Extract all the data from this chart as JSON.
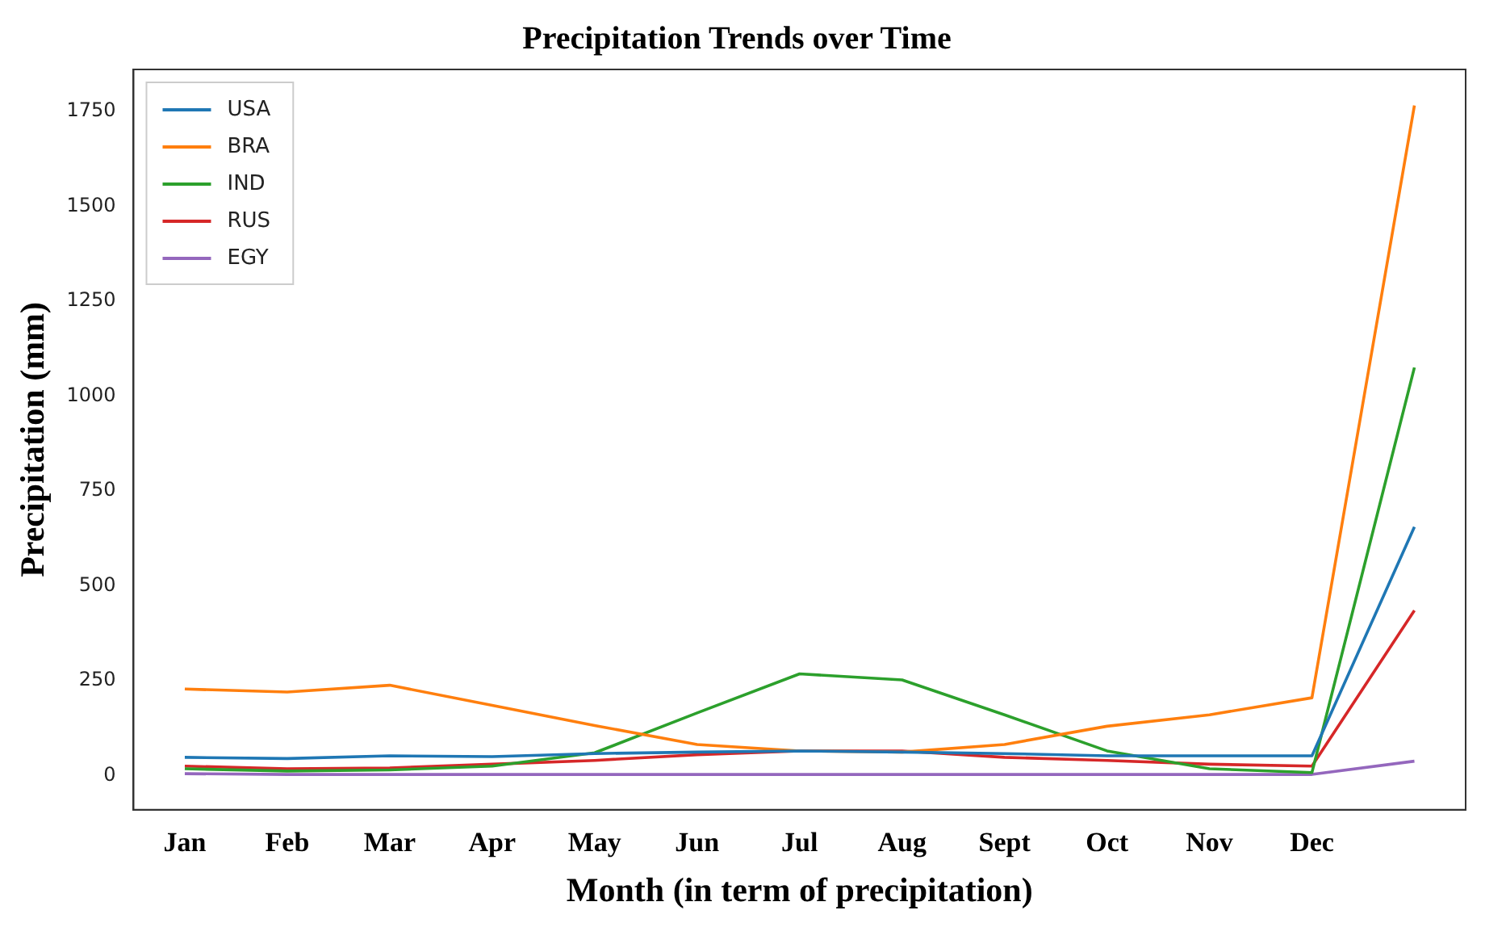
{
  "chart_data": {
    "type": "line",
    "title": "Precipitation Trends over Time",
    "xlabel": "Month (in term of precipitation)",
    "ylabel": "Precipitation (mm)",
    "categories": [
      "Jan",
      "Feb",
      "Mar",
      "Apr",
      "May",
      "Jun",
      "Jul",
      "Aug",
      "Sept",
      "Oct",
      "Nov",
      "Dec",
      null
    ],
    "series": [
      {
        "name": "USA",
        "color": "#1f77b4",
        "values": [
          48,
          45,
          52,
          50,
          58,
          62,
          65,
          62,
          58,
          52,
          52,
          52,
          655
        ]
      },
      {
        "name": "BRA",
        "color": "#ff7f0e",
        "values": [
          228,
          220,
          238,
          185,
          132,
          82,
          65,
          62,
          82,
          130,
          160,
          205,
          1765
        ]
      },
      {
        "name": "IND",
        "color": "#2ca02c",
        "values": [
          18,
          12,
          15,
          25,
          60,
          165,
          268,
          252,
          160,
          65,
          18,
          8,
          1075
        ]
      },
      {
        "name": "RUS",
        "color": "#d62728",
        "values": [
          25,
          18,
          20,
          30,
          40,
          55,
          65,
          65,
          48,
          40,
          30,
          25,
          435
        ]
      },
      {
        "name": "EGY",
        "color": "#9467bd",
        "values": [
          5,
          3,
          3,
          3,
          3,
          3,
          3,
          3,
          3,
          3,
          3,
          3,
          38
        ]
      }
    ],
    "ylim": [
      -90,
      1860
    ],
    "yticks": [
      0,
      250,
      500,
      750,
      1000,
      1250,
      1500,
      1750
    ],
    "grid": false,
    "legend": "top left",
    "marker": "none",
    "line_style": "solid"
  }
}
